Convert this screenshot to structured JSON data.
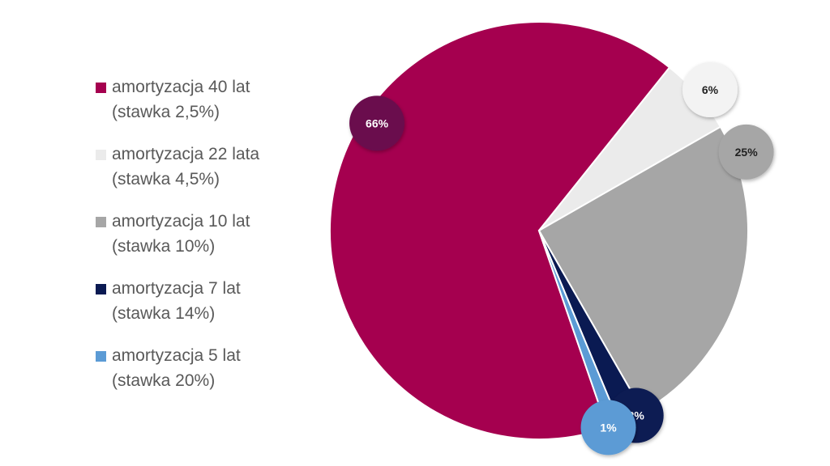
{
  "chart_data": {
    "type": "pie",
    "title": "",
    "slices": [
      {
        "label": "amortyzacja 40 lat",
        "sublabel": "(stawka 2,5%)",
        "value": 66,
        "display": "66%",
        "color": "#A5004F",
        "label_color": "#ffffff",
        "bubble": "#6B0A4E"
      },
      {
        "label": "amortyzacja 22 lata",
        "sublabel": "(stawka 4,5%)",
        "value": 6,
        "display": "6%",
        "color": "#EBEBEB",
        "label_color": "#222222",
        "bubble": "#F3F3F3"
      },
      {
        "label": "amortyzacja 10 lat",
        "sublabel": "(stawka 10%)",
        "value": 25,
        "display": "25%",
        "color": "#A6A6A6",
        "label_color": "#222222",
        "bubble": "#A6A6A6"
      },
      {
        "label": "amortyzacja 7 lat",
        "sublabel": "(stawka 14%)",
        "value": 2,
        "display": "2%",
        "color": "#0A1A52",
        "label_color": "#ffffff",
        "bubble": "#0A1A52"
      },
      {
        "label": "amortyzacja 5 lat",
        "sublabel": "(stawka 20%)",
        "value": 1,
        "display": "1%",
        "color": "#5B9BD5",
        "label_color": "#ffffff",
        "bubble": "#5B9BD5"
      }
    ],
    "legend_position": "left"
  }
}
